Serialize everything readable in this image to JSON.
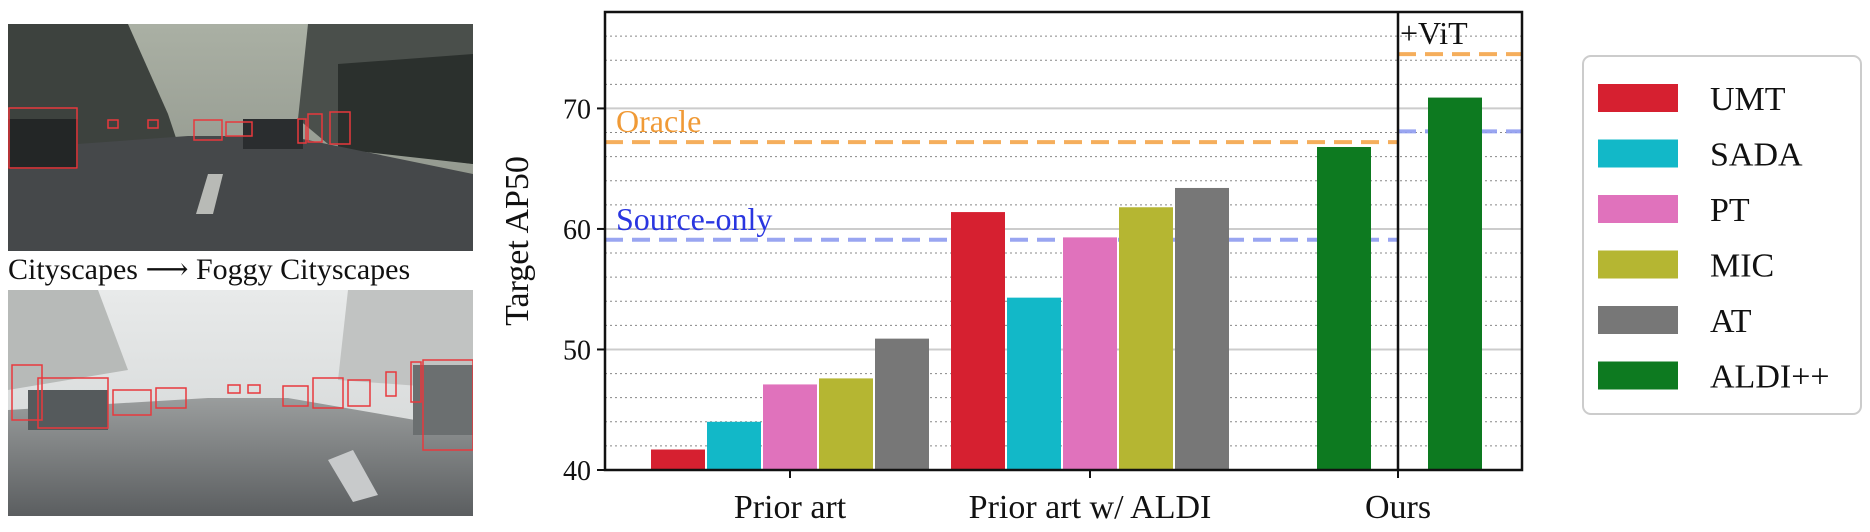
{
  "caption": "Cityscapes ⟶ Foggy Cityscapes",
  "chart_data": {
    "type": "bar",
    "ylabel": "Target AP50",
    "ylim": [
      40,
      78
    ],
    "yticks": [
      40,
      50,
      60,
      70
    ],
    "grid": true,
    "legend_position": "outside-right",
    "groups": [
      {
        "label": "Prior art",
        "bars": [
          {
            "series": "UMT",
            "value": 41.7
          },
          {
            "series": "SADA",
            "value": 44.0
          },
          {
            "series": "PT",
            "value": 47.1
          },
          {
            "series": "MIC",
            "value": 47.6
          },
          {
            "series": "AT",
            "value": 50.9
          }
        ]
      },
      {
        "label": "Prior art w/ ALDI",
        "bars": [
          {
            "series": "UMT",
            "value": 61.4
          },
          {
            "series": "SADA",
            "value": 54.3
          },
          {
            "series": "PT",
            "value": 59.3
          },
          {
            "series": "MIC",
            "value": 61.8
          },
          {
            "series": "AT",
            "value": 63.4
          }
        ]
      },
      {
        "label": "Ours",
        "bars": [
          {
            "series": "ALDI++",
            "value": 66.8,
            "position": "left"
          },
          {
            "series": "ALDI++",
            "value": 70.9,
            "position": "right"
          }
        ]
      }
    ],
    "series": [
      {
        "name": "UMT",
        "color": "#d62030"
      },
      {
        "name": "SADA",
        "color": "#12b8c8"
      },
      {
        "name": "PT",
        "color": "#e072bc"
      },
      {
        "name": "MIC",
        "color": "#b5b632"
      },
      {
        "name": "AT",
        "color": "#777777"
      },
      {
        "name": "ALDI++",
        "color": "#0d7a20"
      }
    ],
    "reference_lines": [
      {
        "label": "Oracle",
        "left_value": 67.2,
        "right_value": 74.5,
        "color": "#f5a64b"
      },
      {
        "label": "Source-only",
        "left_value": 59.1,
        "right_value": 68.1,
        "color": "#8f9cf0"
      }
    ],
    "annotations": [
      {
        "text": "+ViT"
      }
    ]
  }
}
